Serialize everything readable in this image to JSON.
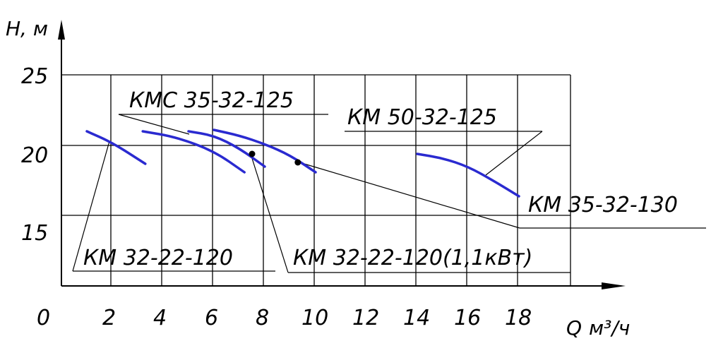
{
  "chart_data": {
    "type": "line",
    "xlabel_q": "Q",
    "xlabel_unit": "м³/ч",
    "ylabel_h": "H, м",
    "x_ticks": [
      "0",
      "2",
      "4",
      "6",
      "8",
      "10",
      "12",
      "14",
      "16",
      "18"
    ],
    "y_ticks": [
      "25",
      "20",
      "15"
    ],
    "xlim": [
      0,
      20
    ],
    "ylim": [
      10,
      25
    ],
    "grid": true,
    "series": [
      {
        "name": "КМ 32-22-120",
        "x": [
          1,
          2,
          3.3
        ],
        "y": [
          21,
          20.2,
          18.7
        ]
      },
      {
        "name": "КМС 35-32-125",
        "x": [
          3.2,
          4.5,
          6,
          7.2
        ],
        "y": [
          21,
          20.6,
          19.6,
          18.1
        ]
      },
      {
        "name": "КМ 32-22-120(1,1кВт)",
        "x": [
          5,
          6,
          7,
          8
        ],
        "y": [
          21,
          20.7,
          19.8,
          18.5
        ]
      },
      {
        "name": "КМ 50-32-125",
        "x": [
          6,
          7,
          8,
          9,
          10
        ],
        "y": [
          21.1,
          20.7,
          20.1,
          19.3,
          18.1
        ]
      },
      {
        "name": "КМ 35-32-130",
        "x": [
          14,
          15,
          16,
          17,
          18
        ],
        "y": [
          19.4,
          19.1,
          18.5,
          17.5,
          16.4
        ]
      }
    ],
    "points": [
      {
        "x": 7.5,
        "y": 19.4
      },
      {
        "x": 9.3,
        "y": 18.8
      }
    ]
  }
}
